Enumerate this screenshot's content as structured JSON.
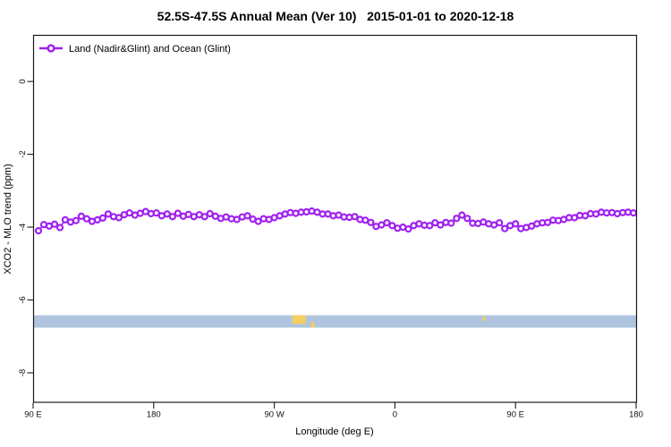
{
  "chart": {
    "title": "52.5S-47.5S Annual Mean (Ver 10)   2015-01-01 to 2020-12-18",
    "legend_label": "Land (Nadir&Glint) and Ocean (Glint)"
  },
  "chart_data": {
    "type": "line",
    "title": "52.5S-47.5S Annual Mean (Ver 10)   2015-01-01 to 2020-12-18",
    "xlabel": "Longitude (deg E)",
    "ylabel": "XCO2 - MLO trend (ppm)",
    "legend_position": "top-left",
    "grid": false,
    "x_axis": {
      "min": 90,
      "max": 540,
      "wraparound_note": "longitude axis runs 90E through 180, 90W, 0, back to 90E and 180",
      "ticks": [
        {
          "lon": 90,
          "label": "90 E"
        },
        {
          "lon": 180,
          "label": "180"
        },
        {
          "lon": 270,
          "label": "90 W"
        },
        {
          "lon": 360,
          "label": "0"
        },
        {
          "lon": 450,
          "label": "90 E"
        },
        {
          "lon": 540,
          "label": "180"
        }
      ]
    },
    "y_axis": {
      "min": -8.81,
      "max": 1.28,
      "ticks": [
        {
          "value": 0,
          "label": "0"
        },
        {
          "value": -2,
          "label": "-2"
        },
        {
          "value": -4,
          "label": "-4"
        },
        {
          "value": -6,
          "label": "-6"
        },
        {
          "value": -8,
          "label": "-8"
        }
      ]
    },
    "surface_band": {
      "color": "#AFC4DF",
      "value_top": -6.42,
      "value_bottom": -6.76,
      "land_patches": [
        {
          "color": "#F5CE62",
          "lon_start": 283.5,
          "lon_end": 293.5,
          "frac_top": 0.0,
          "frac_bottom": 0.7
        },
        {
          "color": "#F5CE62",
          "lon_start": 297.5,
          "lon_end": 300.0,
          "frac_top": 0.55,
          "frac_bottom": 1.0
        },
        {
          "color": "#F5CE62",
          "lon_start": 425.5,
          "lon_end": 427.5,
          "frac_top": 0.1,
          "frac_bottom": 0.45
        }
      ]
    },
    "series": [
      {
        "name": "Land (Nadir&Glint) and Ocean (Glint)",
        "color": "#A020F0",
        "marker": "open-circle",
        "points": [
          [
            94,
            -4.1
          ],
          [
            98,
            -3.93
          ],
          [
            102,
            -3.97
          ],
          [
            106,
            -3.92
          ],
          [
            110,
            -4.01
          ],
          [
            114,
            -3.8
          ],
          [
            118,
            -3.86
          ],
          [
            122,
            -3.82
          ],
          [
            126,
            -3.7
          ],
          [
            130,
            -3.77
          ],
          [
            134,
            -3.84
          ],
          [
            138,
            -3.8
          ],
          [
            142,
            -3.75
          ],
          [
            146,
            -3.64
          ],
          [
            150,
            -3.71
          ],
          [
            154,
            -3.74
          ],
          [
            158,
            -3.66
          ],
          [
            162,
            -3.61
          ],
          [
            166,
            -3.67
          ],
          [
            170,
            -3.62
          ],
          [
            174,
            -3.57
          ],
          [
            178,
            -3.63
          ],
          [
            182,
            -3.61
          ],
          [
            186,
            -3.69
          ],
          [
            190,
            -3.64
          ],
          [
            194,
            -3.71
          ],
          [
            198,
            -3.62
          ],
          [
            202,
            -3.7
          ],
          [
            206,
            -3.65
          ],
          [
            210,
            -3.71
          ],
          [
            214,
            -3.66
          ],
          [
            218,
            -3.71
          ],
          [
            222,
            -3.63
          ],
          [
            226,
            -3.7
          ],
          [
            230,
            -3.76
          ],
          [
            234,
            -3.72
          ],
          [
            238,
            -3.77
          ],
          [
            242,
            -3.79
          ],
          [
            246,
            -3.72
          ],
          [
            250,
            -3.69
          ],
          [
            254,
            -3.78
          ],
          [
            258,
            -3.84
          ],
          [
            262,
            -3.77
          ],
          [
            266,
            -3.79
          ],
          [
            270,
            -3.74
          ],
          [
            274,
            -3.69
          ],
          [
            278,
            -3.64
          ],
          [
            282,
            -3.6
          ],
          [
            286,
            -3.62
          ],
          [
            290,
            -3.59
          ],
          [
            294,
            -3.58
          ],
          [
            298,
            -3.56
          ],
          [
            302,
            -3.59
          ],
          [
            306,
            -3.64
          ],
          [
            310,
            -3.64
          ],
          [
            314,
            -3.69
          ],
          [
            318,
            -3.67
          ],
          [
            322,
            -3.72
          ],
          [
            326,
            -3.73
          ],
          [
            330,
            -3.71
          ],
          [
            334,
            -3.79
          ],
          [
            338,
            -3.81
          ],
          [
            342,
            -3.87
          ],
          [
            346,
            -3.98
          ],
          [
            350,
            -3.94
          ],
          [
            354,
            -3.88
          ],
          [
            358,
            -3.96
          ],
          [
            362,
            -4.03
          ],
          [
            366,
            -4.0
          ],
          [
            370,
            -4.05
          ],
          [
            374,
            -3.96
          ],
          [
            378,
            -3.91
          ],
          [
            382,
            -3.95
          ],
          [
            386,
            -3.96
          ],
          [
            390,
            -3.88
          ],
          [
            394,
            -3.94
          ],
          [
            398,
            -3.87
          ],
          [
            402,
            -3.89
          ],
          [
            406,
            -3.76
          ],
          [
            410,
            -3.67
          ],
          [
            414,
            -3.76
          ],
          [
            418,
            -3.89
          ],
          [
            422,
            -3.9
          ],
          [
            426,
            -3.86
          ],
          [
            430,
            -3.91
          ],
          [
            434,
            -3.94
          ],
          [
            438,
            -3.88
          ],
          [
            442,
            -4.04
          ],
          [
            446,
            -3.96
          ],
          [
            450,
            -3.91
          ],
          [
            454,
            -4.04
          ],
          [
            458,
            -4.01
          ],
          [
            462,
            -3.97
          ],
          [
            466,
            -3.91
          ],
          [
            470,
            -3.88
          ],
          [
            474,
            -3.87
          ],
          [
            478,
            -3.81
          ],
          [
            482,
            -3.82
          ],
          [
            486,
            -3.79
          ],
          [
            490,
            -3.74
          ],
          [
            494,
            -3.74
          ],
          [
            498,
            -3.68
          ],
          [
            502,
            -3.69
          ],
          [
            506,
            -3.63
          ],
          [
            510,
            -3.64
          ],
          [
            514,
            -3.59
          ],
          [
            518,
            -3.61
          ],
          [
            522,
            -3.6
          ],
          [
            526,
            -3.63
          ],
          [
            530,
            -3.6
          ],
          [
            534,
            -3.59
          ],
          [
            538,
            -3.61
          ]
        ]
      }
    ]
  }
}
